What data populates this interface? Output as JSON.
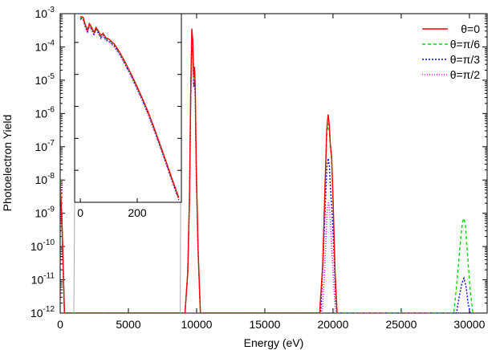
{
  "chart_data": {
    "type": "line",
    "xlabel": "Energy (eV)",
    "ylabel": "Photoelectron Yield",
    "xlim": [
      0,
      31300
    ],
    "ylim_log10": [
      -12,
      -3
    ],
    "y_scale": "log",
    "grid": false,
    "legend_position": "top-right",
    "x_ticks": [
      0,
      5000,
      10000,
      15000,
      20000,
      25000,
      30000
    ],
    "x_tick_labels": [
      "0",
      "5000",
      "10000",
      "15000",
      "20000",
      "25000",
      "30000"
    ],
    "y_ticks_log10": [
      -12,
      -11,
      -10,
      -9,
      -8,
      -7,
      -6,
      -5,
      -4,
      -3
    ],
    "y_tick_labels": [
      {
        "base": "10",
        "exp": "-12"
      },
      {
        "base": "10",
        "exp": "-11"
      },
      {
        "base": "10",
        "exp": "-10"
      },
      {
        "base": "10",
        "exp": "-9"
      },
      {
        "base": "10",
        "exp": "-8"
      },
      {
        "base": "10",
        "exp": "-7"
      },
      {
        "base": "10",
        "exp": "-6"
      },
      {
        "base": "10",
        "exp": "-5"
      },
      {
        "base": "10",
        "exp": "-4"
      },
      {
        "base": "10",
        "exp": "-3"
      }
    ],
    "series": [
      {
        "name": "θ=0",
        "color": "#ff0000",
        "dash": "solid",
        "points": [
          [
            0,
            -8.0
          ],
          [
            150,
            -9.5
          ],
          [
            310,
            -12.0
          ],
          [
            9150,
            -12.0
          ],
          [
            9350,
            -10.8
          ],
          [
            9480,
            -8.5
          ],
          [
            9560,
            -5.5
          ],
          [
            9650,
            -3.45
          ],
          [
            9720,
            -3.8
          ],
          [
            9790,
            -4.9
          ],
          [
            9850,
            -4.6
          ],
          [
            9900,
            -5.2
          ],
          [
            9970,
            -7.5
          ],
          [
            10100,
            -10.0
          ],
          [
            10280,
            -12.0
          ],
          [
            19020,
            -12.0
          ],
          [
            19250,
            -10.5
          ],
          [
            19430,
            -8.0
          ],
          [
            19540,
            -6.5
          ],
          [
            19640,
            -6.03
          ],
          [
            19720,
            -6.3
          ],
          [
            19800,
            -6.9
          ],
          [
            19900,
            -7.3
          ],
          [
            20000,
            -8.5
          ],
          [
            20150,
            -10.8
          ],
          [
            20300,
            -12.0
          ]
        ]
      },
      {
        "name": "θ=π/6",
        "color": "#00dd00",
        "dash": "4,3",
        "points": [
          [
            0,
            -8.0
          ],
          [
            150,
            -9.5
          ],
          [
            310,
            -12.0
          ],
          [
            9150,
            -12.0
          ],
          [
            9350,
            -10.8
          ],
          [
            9480,
            -8.5
          ],
          [
            9560,
            -5.6
          ],
          [
            9650,
            -3.55
          ],
          [
            9720,
            -3.85
          ],
          [
            9790,
            -4.95
          ],
          [
            9850,
            -4.7
          ],
          [
            9900,
            -5.3
          ],
          [
            9970,
            -7.6
          ],
          [
            10100,
            -10.0
          ],
          [
            10280,
            -12.0
          ],
          [
            19020,
            -12.0
          ],
          [
            19250,
            -10.5
          ],
          [
            19430,
            -8.1
          ],
          [
            19540,
            -6.7
          ],
          [
            19640,
            -6.3
          ],
          [
            19720,
            -6.5
          ],
          [
            19800,
            -7.0
          ],
          [
            19900,
            -7.4
          ],
          [
            20000,
            -8.6
          ],
          [
            20150,
            -10.8
          ],
          [
            20300,
            -12.0
          ],
          [
            28850,
            -12.0
          ],
          [
            29100,
            -11.0
          ],
          [
            29350,
            -9.8
          ],
          [
            29500,
            -9.25
          ],
          [
            29600,
            -9.15
          ],
          [
            29700,
            -9.35
          ],
          [
            29850,
            -10.2
          ],
          [
            30050,
            -11.3
          ],
          [
            30250,
            -12.0
          ]
        ]
      },
      {
        "name": "θ=π/3",
        "color": "#0000ee",
        "dash": "2,2",
        "points": [
          [
            0,
            -8.0
          ],
          [
            150,
            -9.5
          ],
          [
            310,
            -12.0
          ],
          [
            9150,
            -12.0
          ],
          [
            9350,
            -10.8
          ],
          [
            9480,
            -8.7
          ],
          [
            9560,
            -6.0
          ],
          [
            9650,
            -4.0
          ],
          [
            9720,
            -4.2
          ],
          [
            9790,
            -5.2
          ],
          [
            9850,
            -5.0
          ],
          [
            9900,
            -5.6
          ],
          [
            9970,
            -7.8
          ],
          [
            10100,
            -10.1
          ],
          [
            10280,
            -12.0
          ],
          [
            19100,
            -12.0
          ],
          [
            19300,
            -10.2
          ],
          [
            19450,
            -8.6
          ],
          [
            19550,
            -7.6
          ],
          [
            19650,
            -7.35
          ],
          [
            19740,
            -7.6
          ],
          [
            19820,
            -8.3
          ],
          [
            19920,
            -8.9
          ],
          [
            20050,
            -10.0
          ],
          [
            20200,
            -11.6
          ],
          [
            20300,
            -12.0
          ],
          [
            29050,
            -12.0
          ],
          [
            29250,
            -11.5
          ],
          [
            29450,
            -11.1
          ],
          [
            29600,
            -10.95
          ],
          [
            29750,
            -11.2
          ],
          [
            29900,
            -11.7
          ],
          [
            30050,
            -12.0
          ]
        ]
      },
      {
        "name": "θ=π/2",
        "color": "#ff00ff",
        "dash": "1,2",
        "points": [
          [
            0,
            -8.0
          ],
          [
            150,
            -9.5
          ],
          [
            310,
            -12.0
          ],
          [
            19200,
            -12.0
          ],
          [
            19380,
            -10.8
          ],
          [
            19500,
            -9.6
          ],
          [
            19600,
            -8.8
          ],
          [
            19680,
            -8.65
          ],
          [
            19760,
            -8.9
          ],
          [
            19850,
            -9.6
          ],
          [
            19950,
            -10.4
          ],
          [
            20100,
            -11.5
          ],
          [
            20200,
            -12.0
          ]
        ]
      }
    ],
    "inset": {
      "x_ticks": [
        0,
        200
      ],
      "x_tick_labels": [
        "0",
        "200"
      ],
      "xlim": [
        -20,
        355
      ],
      "ylim_log10": [
        -9.0,
        -3.1
      ],
      "curve": [
        [
          0,
          -3.28
        ],
        [
          10,
          -3.3
        ],
        [
          18,
          -3.55
        ],
        [
          25,
          -3.7
        ],
        [
          32,
          -3.5
        ],
        [
          40,
          -3.62
        ],
        [
          48,
          -3.78
        ],
        [
          55,
          -3.62
        ],
        [
          63,
          -3.72
        ],
        [
          72,
          -3.88
        ],
        [
          80,
          -3.8
        ],
        [
          90,
          -3.95
        ],
        [
          100,
          -3.98
        ],
        [
          120,
          -4.15
        ],
        [
          140,
          -4.42
        ],
        [
          160,
          -4.75
        ],
        [
          180,
          -5.1
        ],
        [
          200,
          -5.48
        ],
        [
          220,
          -5.88
        ],
        [
          240,
          -6.3
        ],
        [
          260,
          -6.78
        ],
        [
          280,
          -7.28
        ],
        [
          300,
          -7.78
        ],
        [
          320,
          -8.3
        ],
        [
          340,
          -8.8
        ],
        [
          346,
          -8.95
        ]
      ]
    }
  }
}
